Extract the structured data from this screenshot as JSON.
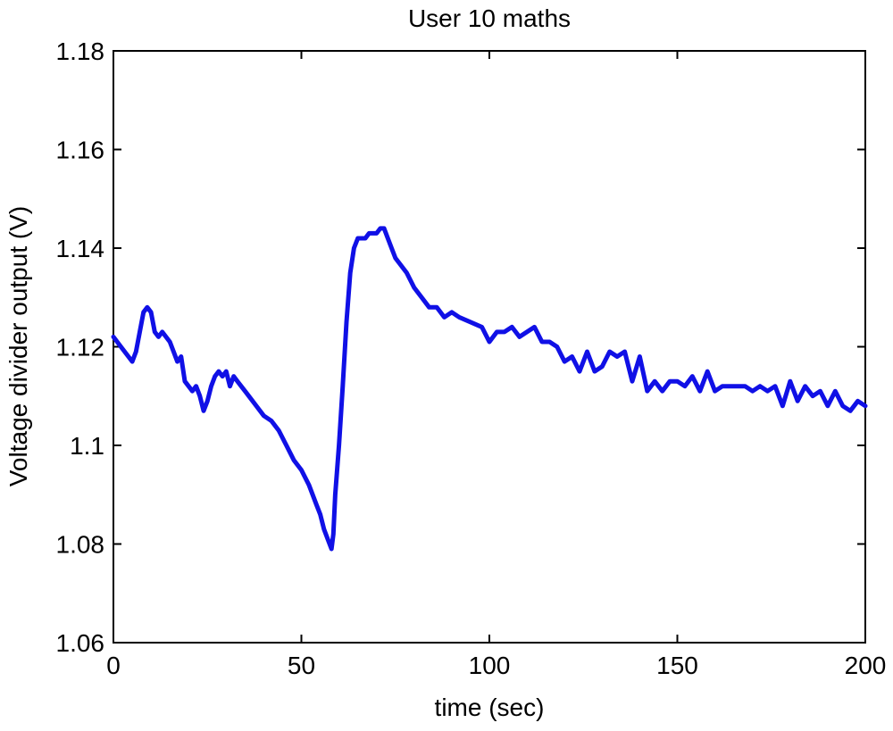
{
  "chart_data": {
    "type": "line",
    "title": "User 10 maths",
    "xlabel": "time (sec)",
    "ylabel": "Voltage divider output (V)",
    "xlim": [
      0,
      200
    ],
    "ylim": [
      1.06,
      1.18
    ],
    "xticks": [
      0,
      50,
      100,
      150,
      200
    ],
    "xtick_labels": [
      "0",
      "50",
      "100",
      "150",
      "200"
    ],
    "yticks": [
      1.06,
      1.08,
      1.1,
      1.12,
      1.14,
      1.16,
      1.18
    ],
    "ytick_labels": [
      "1.06",
      "1.08",
      "1.1",
      "1.12",
      "1.14",
      "1.16",
      "1.18"
    ],
    "grid": false,
    "line_color": "#1010e6",
    "series": [
      {
        "x": [
          0,
          2,
          4,
          5,
          6,
          7,
          8,
          9,
          10,
          11,
          12,
          13,
          14,
          15,
          16,
          17,
          18,
          19,
          20,
          21,
          22,
          23,
          24,
          25,
          26,
          27,
          28,
          29,
          30,
          31,
          32,
          33,
          34,
          35,
          36,
          38,
          40,
          42,
          44,
          46,
          48,
          50,
          52,
          54,
          55,
          56,
          57,
          58,
          58.5,
          59,
          60,
          61,
          62,
          63,
          64,
          65,
          66,
          67,
          68,
          70,
          71,
          72,
          73,
          74,
          75,
          76,
          78,
          80,
          82,
          84,
          86,
          88,
          90,
          92,
          95,
          98,
          100,
          102,
          104,
          106,
          108,
          110,
          112,
          114,
          116,
          118,
          120,
          122,
          124,
          126,
          128,
          130,
          132,
          134,
          136,
          138,
          140,
          142,
          144,
          146,
          148,
          150,
          152,
          154,
          156,
          158,
          160,
          162,
          164,
          166,
          168,
          170,
          172,
          174,
          176,
          178,
          180,
          182,
          184,
          186,
          188,
          190,
          192,
          194,
          196,
          198,
          200
        ],
        "y": [
          1.122,
          1.12,
          1.118,
          1.117,
          1.119,
          1.123,
          1.127,
          1.128,
          1.127,
          1.123,
          1.122,
          1.123,
          1.122,
          1.121,
          1.119,
          1.117,
          1.118,
          1.113,
          1.112,
          1.111,
          1.112,
          1.11,
          1.107,
          1.109,
          1.112,
          1.114,
          1.115,
          1.114,
          1.115,
          1.112,
          1.114,
          1.113,
          1.112,
          1.111,
          1.11,
          1.108,
          1.106,
          1.105,
          1.103,
          1.1,
          1.097,
          1.095,
          1.092,
          1.088,
          1.086,
          1.083,
          1.081,
          1.079,
          1.082,
          1.09,
          1.1,
          1.112,
          1.125,
          1.135,
          1.14,
          1.142,
          1.142,
          1.142,
          1.143,
          1.143,
          1.144,
          1.144,
          1.142,
          1.14,
          1.138,
          1.137,
          1.135,
          1.132,
          1.13,
          1.128,
          1.128,
          1.126,
          1.127,
          1.126,
          1.125,
          1.124,
          1.121,
          1.123,
          1.123,
          1.124,
          1.122,
          1.123,
          1.124,
          1.121,
          1.121,
          1.12,
          1.117,
          1.118,
          1.115,
          1.119,
          1.115,
          1.116,
          1.119,
          1.118,
          1.119,
          1.113,
          1.118,
          1.111,
          1.113,
          1.111,
          1.113,
          1.113,
          1.112,
          1.114,
          1.111,
          1.115,
          1.111,
          1.112,
          1.112,
          1.112,
          1.112,
          1.111,
          1.112,
          1.111,
          1.112,
          1.108,
          1.113,
          1.109,
          1.112,
          1.11,
          1.111,
          1.108,
          1.111,
          1.108,
          1.107,
          1.109,
          1.108
        ]
      }
    ]
  }
}
